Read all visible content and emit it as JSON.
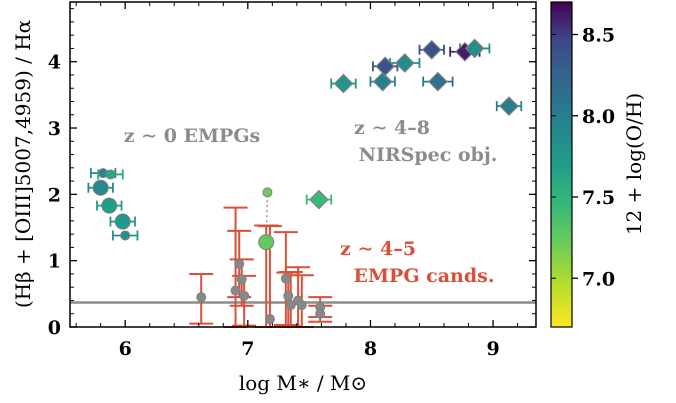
{
  "chart_data": {
    "type": "scatter",
    "xlabel": "log M∗ / M⊙",
    "ylabel": "(Hβ + [OIII]5007,4959) / Hα",
    "xlim": [
      5.55,
      9.35
    ],
    "ylim": [
      0,
      4.9
    ],
    "x_ticks": [
      "6",
      "7",
      "8",
      "9"
    ],
    "y_ticks": [
      "0",
      "1",
      "2",
      "3",
      "4"
    ],
    "reference_line": {
      "y": 0.37,
      "color": "#8c8c8c"
    },
    "colorbar": {
      "label": "12 + log(O/H)",
      "range": [
        6.7,
        8.7
      ],
      "ticks": [
        "7.0",
        "7.5",
        "8.0",
        "8.5"
      ],
      "colormap": "viridis"
    },
    "annotations": [
      {
        "text": "z ∼ 0 EMPGs",
        "color": "#8c8c8c"
      },
      {
        "text": "z ∼ 4–8",
        "color": "#8c8c8c"
      },
      {
        "text": "NIRSpec obj.",
        "color": "#8c8c8c"
      },
      {
        "text": "z ∼ 4–5",
        "color": "#d9503a"
      },
      {
        "text": "EMPG cands.",
        "color": "#d9503a"
      }
    ],
    "series": [
      {
        "group": "z ~ 4-8 NIRSpec obj.",
        "marker": "diamond",
        "points": [
          {
            "x": 7.58,
            "y": 1.92,
            "xerr": 0.1,
            "oh": 7.35
          },
          {
            "x": 7.78,
            "y": 3.67,
            "xerr": 0.1,
            "oh": 7.65
          },
          {
            "x": 8.1,
            "y": 3.7,
            "xerr": 0.1,
            "oh": 7.82
          },
          {
            "x": 8.12,
            "y": 3.93,
            "xerr": 0.1,
            "oh": 8.18
          },
          {
            "x": 8.28,
            "y": 3.98,
            "xerr": 0.12,
            "oh": 7.75
          },
          {
            "x": 8.5,
            "y": 4.18,
            "xerr": 0.1,
            "oh": 8.2
          },
          {
            "x": 8.55,
            "y": 3.7,
            "xerr": 0.12,
            "oh": 7.95
          },
          {
            "x": 8.77,
            "y": 4.15,
            "xerr": 0.12,
            "oh": 8.55
          },
          {
            "x": 8.85,
            "y": 4.2,
            "xerr": 0.12,
            "oh": 7.72
          },
          {
            "x": 9.13,
            "y": 3.33,
            "xerr": 0.1,
            "oh": 7.85
          }
        ]
      },
      {
        "group": "z ~ 0 EMPGs",
        "marker": "circle",
        "points": [
          {
            "x": 5.8,
            "y": 2.1,
            "xerr": 0.1,
            "oh": 7.75,
            "size": "large"
          },
          {
            "x": 5.87,
            "y": 1.83,
            "xerr": 0.1,
            "oh": 7.58,
            "size": "large"
          },
          {
            "x": 5.98,
            "y": 1.59,
            "xerr": 0.1,
            "oh": 7.62,
            "size": "large"
          },
          {
            "x": 5.82,
            "y": 2.32,
            "xerr": 0.1,
            "oh": 7.75,
            "size": "small"
          },
          {
            "x": 5.88,
            "y": 2.3,
            "xerr": 0.1,
            "oh": 7.5,
            "size": "small"
          },
          {
            "x": 6.0,
            "y": 1.38,
            "xerr": 0.1,
            "oh": 7.68,
            "size": "small"
          }
        ]
      },
      {
        "group": "z ~ 4-5 EMPG cands. (no metallicity)",
        "marker": "circle",
        "points": [
          {
            "x": 6.62,
            "y": 0.45,
            "yerr_up": 0.35,
            "yerr_dn": 0.4
          },
          {
            "x": 6.9,
            "y": 0.55,
            "yerr_up": 1.25,
            "yerr_dn": 0.55
          },
          {
            "x": 6.93,
            "y": 0.95,
            "yerr_up": 0.5,
            "yerr_dn": 0.5
          },
          {
            "x": 6.95,
            "y": 0.72,
            "yerr_up": 0.3,
            "yerr_dn": 0.4
          },
          {
            "x": 6.97,
            "y": 0.47,
            "yerr_up": 0.3,
            "yerr_dn": 0.45
          },
          {
            "x": 7.18,
            "y": 0.12,
            "yerr_up": 1.4,
            "yerr_dn": 0.12
          },
          {
            "x": 7.31,
            "y": 0.73,
            "yerr_up": 0.7,
            "yerr_dn": 0.7
          },
          {
            "x": 7.33,
            "y": 0.47,
            "yerr_up": 0.35,
            "yerr_dn": 0.45
          },
          {
            "x": 7.35,
            "y": 0.33,
            "yerr_up": 0.5,
            "yerr_dn": 0.33
          },
          {
            "x": 7.41,
            "y": 0.4,
            "yerr_up": 0.5,
            "yerr_dn": 0.4
          },
          {
            "x": 7.44,
            "y": 0.33,
            "yerr_up": 0.45,
            "yerr_dn": 0.33
          },
          {
            "x": 7.59,
            "y": 0.3,
            "yerr_up": 0.15,
            "yerr_dn": 0.15
          },
          {
            "x": 7.59,
            "y": 0.2,
            "yerr_up": 0.12,
            "yerr_dn": 0.12
          }
        ]
      },
      {
        "group": "z ~ 4-5 EMPG cand. with metallicity",
        "marker": "circle",
        "points": [
          {
            "x": 7.15,
            "y": 1.28,
            "oh": 7.18,
            "size": "large",
            "yerr_up": 0.25,
            "yerr_dn": 1.28
          },
          {
            "x": 7.16,
            "y": 2.03,
            "oh": 7.15,
            "size": "small"
          }
        ],
        "connector": true
      }
    ]
  }
}
